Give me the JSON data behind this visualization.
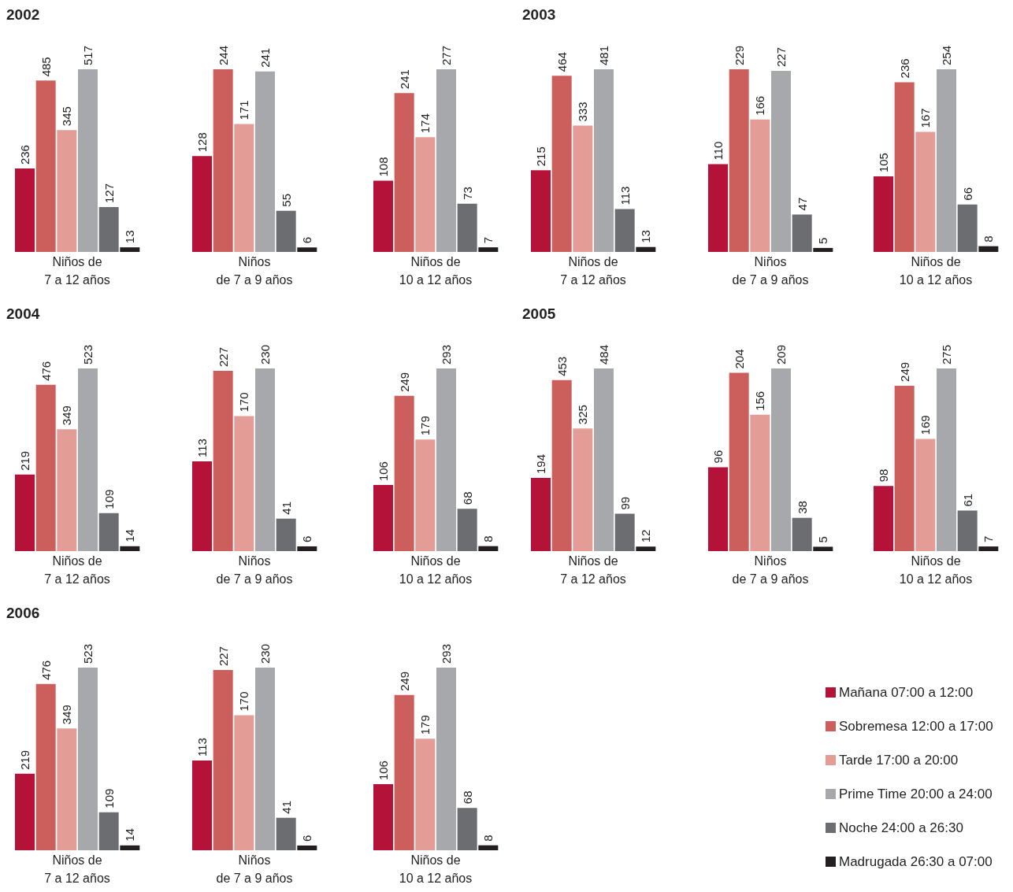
{
  "chart_data": [
    {
      "type": "bar",
      "title": "2002",
      "xlabel": "Niños de\n7 a 12 años",
      "categories": [
        null,
        null,
        null,
        null,
        null,
        null
      ],
      "tick_labels": false,
      "data_labels": true,
      "values": [
        236,
        485,
        345,
        517,
        127,
        13
      ],
      "colors": [
        "#b5123a",
        "#cc5f5c",
        "#e49c97",
        "#a7a8ac",
        "#6c6d71",
        "#231f20"
      ]
    },
    {
      "type": "bar",
      "xlabel": "Niños\nde 7 a 9 años",
      "categories": [
        null,
        null,
        null,
        null,
        null,
        null
      ],
      "tick_labels": false,
      "data_labels": true,
      "values": [
        128,
        244,
        171,
        241,
        55,
        6
      ],
      "colors": [
        "#b5123a",
        "#cc5f5c",
        "#e49c97",
        "#a7a8ac",
        "#6c6d71",
        "#231f20"
      ]
    },
    {
      "type": "bar",
      "xlabel": "Niños de\n10 a 12 años",
      "categories": [
        null,
        null,
        null,
        null,
        null,
        null
      ],
      "tick_labels": false,
      "data_labels": true,
      "values": [
        108,
        241,
        174,
        277,
        73,
        7
      ],
      "colors": [
        "#b5123a",
        "#cc5f5c",
        "#e49c97",
        "#a7a8ac",
        "#6c6d71",
        "#231f20"
      ]
    },
    {
      "type": "bar",
      "title": "2003",
      "xlabel": "Niños de\n7 a 12 años",
      "categories": [
        null,
        null,
        null,
        null,
        null,
        null
      ],
      "tick_labels": false,
      "data_labels": true,
      "values": [
        215,
        464,
        333,
        481,
        113,
        13
      ],
      "colors": [
        "#b5123a",
        "#cc5f5c",
        "#e49c97",
        "#a7a8ac",
        "#6c6d71",
        "#231f20"
      ]
    },
    {
      "type": "bar",
      "xlabel": "Niños\nde 7 a 9 años",
      "categories": [
        null,
        null,
        null,
        null,
        null,
        null
      ],
      "tick_labels": false,
      "data_labels": true,
      "values": [
        110,
        229,
        166,
        227,
        47,
        5
      ],
      "colors": [
        "#b5123a",
        "#cc5f5c",
        "#e49c97",
        "#a7a8ac",
        "#6c6d71",
        "#231f20"
      ]
    },
    {
      "type": "bar",
      "xlabel": "Niños de\n10 a 12 años",
      "categories": [
        null,
        null,
        null,
        null,
        null,
        null
      ],
      "tick_labels": false,
      "data_labels": true,
      "values": [
        105,
        236,
        167,
        254,
        66,
        8
      ],
      "colors": [
        "#b5123a",
        "#cc5f5c",
        "#e49c97",
        "#a7a8ac",
        "#6c6d71",
        "#231f20"
      ]
    },
    {
      "type": "bar",
      "title": "2004",
      "xlabel": "Niños de\n7 a 12 años",
      "categories": [
        null,
        null,
        null,
        null,
        null,
        null
      ],
      "tick_labels": false,
      "data_labels": true,
      "values": [
        219,
        476,
        349,
        523,
        109,
        14
      ],
      "colors": [
        "#b5123a",
        "#cc5f5c",
        "#e49c97",
        "#a7a8ac",
        "#6c6d71",
        "#231f20"
      ]
    },
    {
      "type": "bar",
      "xlabel": "Niños\nde 7 a 9 años",
      "categories": [
        null,
        null,
        null,
        null,
        null,
        null
      ],
      "tick_labels": false,
      "data_labels": true,
      "values": [
        113,
        227,
        170,
        230,
        41,
        6
      ],
      "colors": [
        "#b5123a",
        "#cc5f5c",
        "#e49c97",
        "#a7a8ac",
        "#6c6d71",
        "#231f20"
      ]
    },
    {
      "type": "bar",
      "xlabel": "Niños de\n10 a 12 años",
      "categories": [
        null,
        null,
        null,
        null,
        null,
        null
      ],
      "tick_labels": false,
      "data_labels": true,
      "values": [
        106,
        249,
        179,
        293,
        68,
        8
      ],
      "colors": [
        "#b5123a",
        "#cc5f5c",
        "#e49c97",
        "#a7a8ac",
        "#6c6d71",
        "#231f20"
      ]
    },
    {
      "type": "bar",
      "title": "2005",
      "xlabel": "Niños de\n7 a 12 años",
      "categories": [
        null,
        null,
        null,
        null,
        null,
        null
      ],
      "tick_labels": false,
      "data_labels": true,
      "values": [
        194,
        453,
        325,
        484,
        99,
        12
      ],
      "colors": [
        "#b5123a",
        "#cc5f5c",
        "#e49c97",
        "#a7a8ac",
        "#6c6d71",
        "#231f20"
      ]
    },
    {
      "type": "bar",
      "xlabel": "Niños\nde 7 a 9 años",
      "categories": [
        null,
        null,
        null,
        null,
        null,
        null
      ],
      "tick_labels": false,
      "data_labels": true,
      "values": [
        96,
        204,
        156,
        209,
        38,
        5
      ],
      "colors": [
        "#b5123a",
        "#cc5f5c",
        "#e49c97",
        "#a7a8ac",
        "#6c6d71",
        "#231f20"
      ]
    },
    {
      "type": "bar",
      "xlabel": "Niños de\n10 a 12 años",
      "categories": [
        null,
        null,
        null,
        null,
        null,
        null
      ],
      "tick_labels": false,
      "data_labels": true,
      "values": [
        98,
        249,
        169,
        275,
        61,
        7
      ],
      "colors": [
        "#b5123a",
        "#cc5f5c",
        "#e49c97",
        "#a7a8ac",
        "#6c6d71",
        "#231f20"
      ]
    },
    {
      "type": "bar",
      "title": "2006",
      "xlabel": "Niños de\n7 a 12 años",
      "categories": [
        null,
        null,
        null,
        null,
        null,
        null
      ],
      "tick_labels": false,
      "data_labels": true,
      "values": [
        219,
        476,
        349,
        523,
        109,
        14
      ],
      "colors": [
        "#b5123a",
        "#cc5f5c",
        "#e49c97",
        "#a7a8ac",
        "#6c6d71",
        "#231f20"
      ]
    },
    {
      "type": "bar",
      "xlabel": "Niños\nde 7 a 9 años",
      "categories": [
        null,
        null,
        null,
        null,
        null,
        null
      ],
      "tick_labels": false,
      "data_labels": true,
      "values": [
        113,
        227,
        170,
        230,
        41,
        6
      ],
      "colors": [
        "#b5123a",
        "#cc5f5c",
        "#e49c97",
        "#a7a8ac",
        "#6c6d71",
        "#231f20"
      ]
    },
    {
      "type": "bar",
      "xlabel": "Niños de\n10 a 12 años",
      "categories": [
        null,
        null,
        null,
        null,
        null,
        null
      ],
      "tick_labels": false,
      "data_labels": true,
      "values": [
        106,
        249,
        179,
        293,
        68,
        8
      ],
      "colors": [
        "#b5123a",
        "#cc5f5c",
        "#e49c97",
        "#a7a8ac",
        "#6c6d71",
        "#231f20"
      ]
    },
    {
      "type": "other",
      "annotations": [
        "Mañana 07:00 a 12:00",
        "Sobremesa 12:00 a 17:00",
        "Tarde 17:00 a 20:00",
        "Prime Time 20:00 a 24:00",
        "Noche 24:00 a 26:30",
        "Madrugada 26:30 a 07:00"
      ],
      "colors": [
        "#b5123a",
        "#cc5f5c",
        "#e49c97",
        "#a7a8ac",
        "#6c6d71",
        "#231f20"
      ]
    }
  ]
}
